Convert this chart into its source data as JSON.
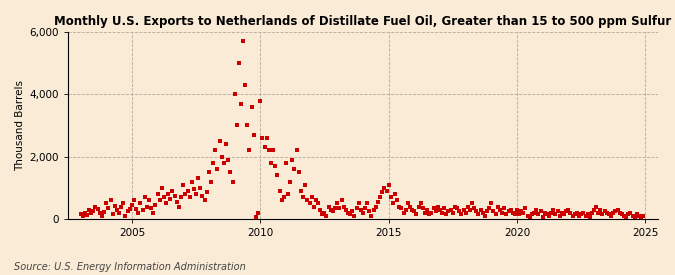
{
  "title": "Monthly U.S. Exports to Netherlands of Distillate Fuel Oil, Greater than 15 to 500 ppm Sulfur",
  "ylabel": "Thousand Barrels",
  "source": "Source: U.S. Energy Information Administration",
  "background_color": "#faebd7",
  "plot_bg_color": "#faebd7",
  "dot_color": "#cc0000",
  "dot_size": 6,
  "ylim": [
    0,
    6000
  ],
  "yticks": [
    0,
    2000,
    4000,
    6000
  ],
  "ytick_labels": [
    "0",
    "2,000",
    "4,000",
    "6,000"
  ],
  "xlim_start": 2002.5,
  "xlim_end": 2025.5,
  "xticks": [
    2005,
    2010,
    2015,
    2020,
    2025
  ],
  "data": [
    [
      2003.0,
      150
    ],
    [
      2003.08,
      80
    ],
    [
      2003.17,
      200
    ],
    [
      2003.25,
      120
    ],
    [
      2003.33,
      300
    ],
    [
      2003.42,
      180
    ],
    [
      2003.5,
      250
    ],
    [
      2003.58,
      400
    ],
    [
      2003.67,
      320
    ],
    [
      2003.75,
      180
    ],
    [
      2003.83,
      90
    ],
    [
      2003.92,
      220
    ],
    [
      2004.0,
      500
    ],
    [
      2004.08,
      350
    ],
    [
      2004.17,
      600
    ],
    [
      2004.25,
      150
    ],
    [
      2004.33,
      420
    ],
    [
      2004.42,
      280
    ],
    [
      2004.5,
      200
    ],
    [
      2004.58,
      380
    ],
    [
      2004.67,
      500
    ],
    [
      2004.75,
      100
    ],
    [
      2004.83,
      250
    ],
    [
      2004.92,
      310
    ],
    [
      2005.0,
      450
    ],
    [
      2005.08,
      600
    ],
    [
      2005.17,
      320
    ],
    [
      2005.25,
      180
    ],
    [
      2005.33,
      500
    ],
    [
      2005.42,
      280
    ],
    [
      2005.5,
      700
    ],
    [
      2005.58,
      400
    ],
    [
      2005.67,
      600
    ],
    [
      2005.75,
      350
    ],
    [
      2005.83,
      200
    ],
    [
      2005.92,
      450
    ],
    [
      2006.0,
      800
    ],
    [
      2006.08,
      600
    ],
    [
      2006.17,
      1000
    ],
    [
      2006.25,
      700
    ],
    [
      2006.33,
      500
    ],
    [
      2006.42,
      800
    ],
    [
      2006.5,
      650
    ],
    [
      2006.58,
      900
    ],
    [
      2006.67,
      750
    ],
    [
      2006.75,
      550
    ],
    [
      2006.83,
      400
    ],
    [
      2006.92,
      700
    ],
    [
      2007.0,
      1100
    ],
    [
      2007.08,
      800
    ],
    [
      2007.17,
      900
    ],
    [
      2007.25,
      700
    ],
    [
      2007.33,
      1200
    ],
    [
      2007.42,
      950
    ],
    [
      2007.5,
      800
    ],
    [
      2007.58,
      1300
    ],
    [
      2007.67,
      1000
    ],
    [
      2007.75,
      750
    ],
    [
      2007.83,
      600
    ],
    [
      2007.92,
      850
    ],
    [
      2008.0,
      1500
    ],
    [
      2008.08,
      1200
    ],
    [
      2008.17,
      1800
    ],
    [
      2008.25,
      2200
    ],
    [
      2008.33,
      1600
    ],
    [
      2008.42,
      2500
    ],
    [
      2008.5,
      2000
    ],
    [
      2008.58,
      1800
    ],
    [
      2008.67,
      2400
    ],
    [
      2008.75,
      1900
    ],
    [
      2008.83,
      1500
    ],
    [
      2008.92,
      1200
    ],
    [
      2009.0,
      4000
    ],
    [
      2009.08,
      3000
    ],
    [
      2009.17,
      5000
    ],
    [
      2009.25,
      3700
    ],
    [
      2009.33,
      5700
    ],
    [
      2009.42,
      4300
    ],
    [
      2009.5,
      3000
    ],
    [
      2009.58,
      2200
    ],
    [
      2009.67,
      3600
    ],
    [
      2009.75,
      2700
    ],
    [
      2009.83,
      50
    ],
    [
      2009.92,
      200
    ],
    [
      2010.0,
      3800
    ],
    [
      2010.08,
      2600
    ],
    [
      2010.17,
      2300
    ],
    [
      2010.25,
      2600
    ],
    [
      2010.33,
      2200
    ],
    [
      2010.42,
      1800
    ],
    [
      2010.5,
      2200
    ],
    [
      2010.58,
      1700
    ],
    [
      2010.67,
      1400
    ],
    [
      2010.75,
      900
    ],
    [
      2010.83,
      600
    ],
    [
      2010.92,
      700
    ],
    [
      2011.0,
      1800
    ],
    [
      2011.08,
      800
    ],
    [
      2011.17,
      1200
    ],
    [
      2011.25,
      1900
    ],
    [
      2011.33,
      1600
    ],
    [
      2011.42,
      2200
    ],
    [
      2011.5,
      1500
    ],
    [
      2011.58,
      900
    ],
    [
      2011.67,
      700
    ],
    [
      2011.75,
      1100
    ],
    [
      2011.83,
      600
    ],
    [
      2011.92,
      500
    ],
    [
      2012.0,
      700
    ],
    [
      2012.08,
      400
    ],
    [
      2012.17,
      600
    ],
    [
      2012.25,
      500
    ],
    [
      2012.33,
      300
    ],
    [
      2012.42,
      150
    ],
    [
      2012.5,
      200
    ],
    [
      2012.58,
      100
    ],
    [
      2012.67,
      400
    ],
    [
      2012.75,
      300
    ],
    [
      2012.83,
      250
    ],
    [
      2012.92,
      350
    ],
    [
      2013.0,
      500
    ],
    [
      2013.08,
      350
    ],
    [
      2013.17,
      600
    ],
    [
      2013.25,
      400
    ],
    [
      2013.33,
      300
    ],
    [
      2013.42,
      200
    ],
    [
      2013.5,
      150
    ],
    [
      2013.58,
      250
    ],
    [
      2013.67,
      100
    ],
    [
      2013.75,
      350
    ],
    [
      2013.83,
      500
    ],
    [
      2013.92,
      300
    ],
    [
      2014.0,
      200
    ],
    [
      2014.08,
      350
    ],
    [
      2014.17,
      500
    ],
    [
      2014.25,
      250
    ],
    [
      2014.33,
      100
    ],
    [
      2014.42,
      300
    ],
    [
      2014.5,
      400
    ],
    [
      2014.58,
      550
    ],
    [
      2014.67,
      700
    ],
    [
      2014.75,
      850
    ],
    [
      2014.83,
      1000
    ],
    [
      2014.92,
      900
    ],
    [
      2015.0,
      1100
    ],
    [
      2015.08,
      700
    ],
    [
      2015.17,
      500
    ],
    [
      2015.25,
      800
    ],
    [
      2015.33,
      600
    ],
    [
      2015.42,
      400
    ],
    [
      2015.5,
      350
    ],
    [
      2015.58,
      200
    ],
    [
      2015.67,
      300
    ],
    [
      2015.75,
      500
    ],
    [
      2015.83,
      400
    ],
    [
      2015.92,
      300
    ],
    [
      2016.0,
      250
    ],
    [
      2016.08,
      150
    ],
    [
      2016.17,
      400
    ],
    [
      2016.25,
      500
    ],
    [
      2016.33,
      350
    ],
    [
      2016.42,
      200
    ],
    [
      2016.5,
      300
    ],
    [
      2016.58,
      150
    ],
    [
      2016.67,
      200
    ],
    [
      2016.75,
      350
    ],
    [
      2016.83,
      250
    ],
    [
      2016.92,
      400
    ],
    [
      2017.0,
      300
    ],
    [
      2017.08,
      200
    ],
    [
      2017.17,
      350
    ],
    [
      2017.25,
      150
    ],
    [
      2017.33,
      250
    ],
    [
      2017.42,
      300
    ],
    [
      2017.5,
      200
    ],
    [
      2017.58,
      400
    ],
    [
      2017.67,
      350
    ],
    [
      2017.75,
      250
    ],
    [
      2017.83,
      150
    ],
    [
      2017.92,
      300
    ],
    [
      2018.0,
      200
    ],
    [
      2018.08,
      400
    ],
    [
      2018.17,
      300
    ],
    [
      2018.25,
      500
    ],
    [
      2018.33,
      350
    ],
    [
      2018.42,
      250
    ],
    [
      2018.5,
      150
    ],
    [
      2018.58,
      300
    ],
    [
      2018.67,
      200
    ],
    [
      2018.75,
      100
    ],
    [
      2018.83,
      250
    ],
    [
      2018.92,
      350
    ],
    [
      2019.0,
      500
    ],
    [
      2019.08,
      250
    ],
    [
      2019.17,
      150
    ],
    [
      2019.25,
      400
    ],
    [
      2019.33,
      300
    ],
    [
      2019.42,
      200
    ],
    [
      2019.5,
      350
    ],
    [
      2019.58,
      150
    ],
    [
      2019.67,
      250
    ],
    [
      2019.75,
      300
    ],
    [
      2019.83,
      200
    ],
    [
      2019.92,
      150
    ],
    [
      2020.0,
      300
    ],
    [
      2020.08,
      150
    ],
    [
      2020.17,
      250
    ],
    [
      2020.25,
      200
    ],
    [
      2020.33,
      350
    ],
    [
      2020.42,
      100
    ],
    [
      2020.5,
      50
    ],
    [
      2020.58,
      150
    ],
    [
      2020.67,
      200
    ],
    [
      2020.75,
      300
    ],
    [
      2020.83,
      150
    ],
    [
      2020.92,
      250
    ],
    [
      2021.0,
      50
    ],
    [
      2021.08,
      200
    ],
    [
      2021.17,
      150
    ],
    [
      2021.25,
      100
    ],
    [
      2021.33,
      200
    ],
    [
      2021.42,
      300
    ],
    [
      2021.5,
      150
    ],
    [
      2021.58,
      250
    ],
    [
      2021.67,
      100
    ],
    [
      2021.75,
      200
    ],
    [
      2021.83,
      150
    ],
    [
      2021.92,
      250
    ],
    [
      2022.0,
      300
    ],
    [
      2022.08,
      200
    ],
    [
      2022.17,
      100
    ],
    [
      2022.25,
      150
    ],
    [
      2022.33,
      200
    ],
    [
      2022.42,
      100
    ],
    [
      2022.5,
      150
    ],
    [
      2022.58,
      200
    ],
    [
      2022.67,
      100
    ],
    [
      2022.75,
      150
    ],
    [
      2022.83,
      50
    ],
    [
      2022.92,
      200
    ],
    [
      2023.0,
      300
    ],
    [
      2023.08,
      400
    ],
    [
      2023.17,
      200
    ],
    [
      2023.25,
      300
    ],
    [
      2023.33,
      150
    ],
    [
      2023.42,
      250
    ],
    [
      2023.5,
      200
    ],
    [
      2023.58,
      150
    ],
    [
      2023.67,
      100
    ],
    [
      2023.75,
      200
    ],
    [
      2023.83,
      250
    ],
    [
      2023.92,
      300
    ],
    [
      2024.0,
      200
    ],
    [
      2024.08,
      150
    ],
    [
      2024.17,
      100
    ],
    [
      2024.25,
      50
    ],
    [
      2024.33,
      150
    ],
    [
      2024.42,
      200
    ],
    [
      2024.5,
      100
    ],
    [
      2024.58,
      50
    ],
    [
      2024.67,
      150
    ],
    [
      2024.75,
      100
    ],
    [
      2024.83,
      50
    ],
    [
      2024.92,
      100
    ]
  ]
}
